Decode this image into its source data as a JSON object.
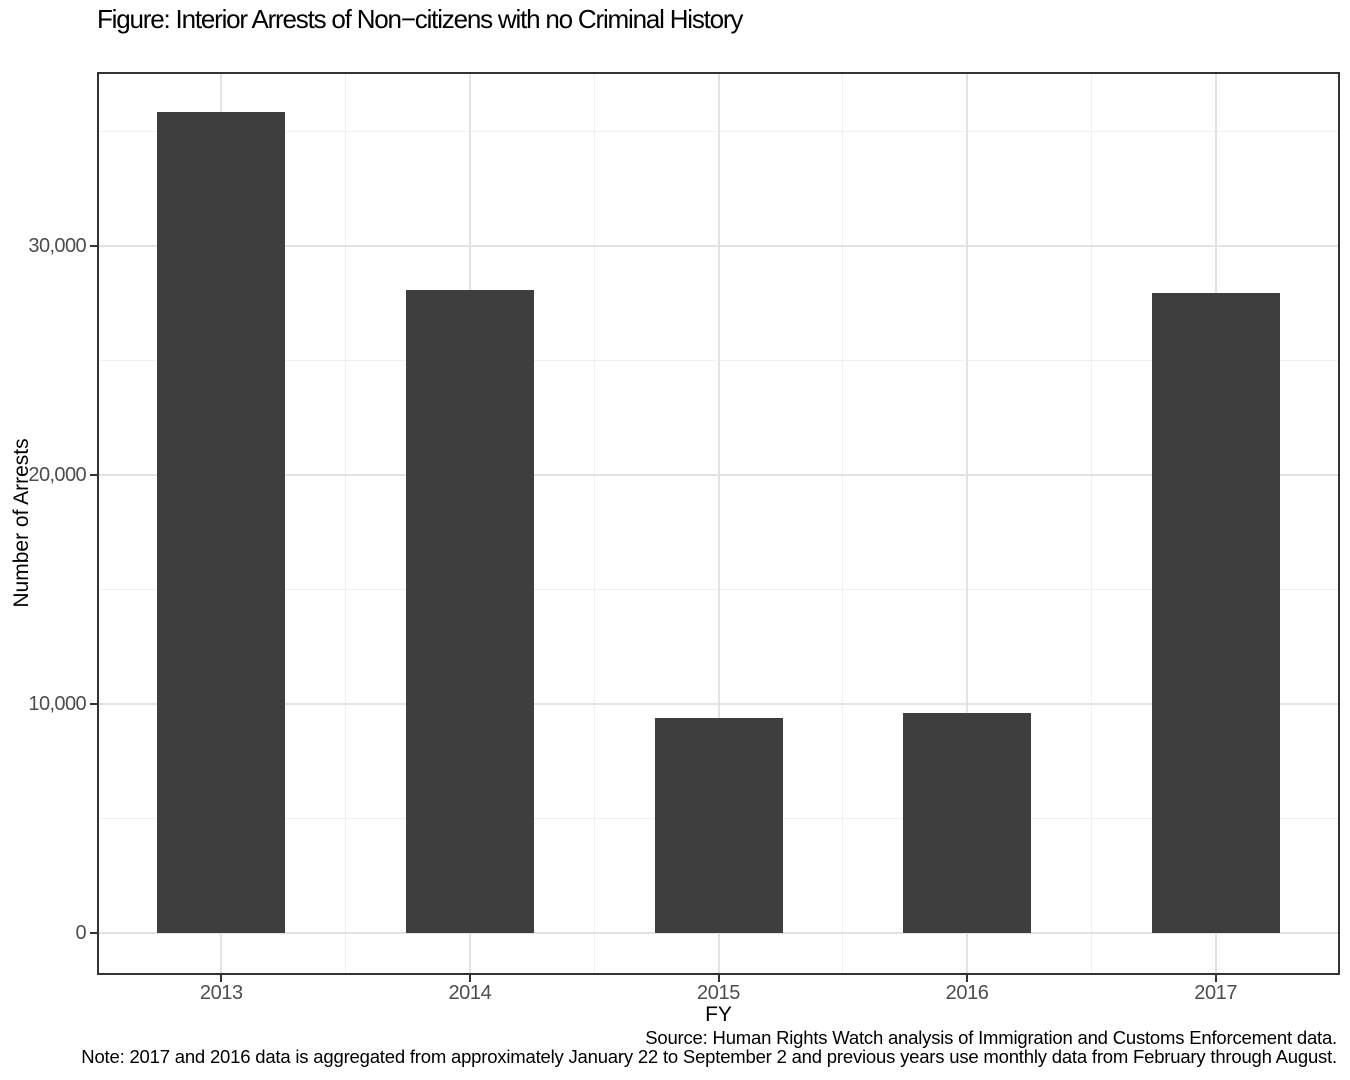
{
  "figure": {
    "title": "Figure: Interior Arrests of Non−citizens with no Criminal History"
  },
  "chart_data": {
    "type": "bar",
    "title": "Figure: Interior Arrests of Non−citizens with no Criminal History",
    "categories": [
      "2013",
      "2014",
      "2015",
      "2016",
      "2017"
    ],
    "values": [
      35850,
      28100,
      9400,
      9600,
      27950
    ],
    "xlabel": "FY",
    "ylabel": "Number of Arrests",
    "ylim": [
      0,
      37600
    ],
    "y_major_ticks": [
      0,
      10000,
      20000,
      30000
    ],
    "y_major_tick_labels": [
      "0",
      "10,000",
      "20,000",
      "30,000"
    ],
    "y_minor_ticks": [
      5000,
      15000,
      25000,
      35000
    ],
    "grid": true,
    "legend_position": "none",
    "bar_color": "#3e3e3e",
    "panel_border_color": "#333333",
    "grid_major_color": "#e3e3e3",
    "grid_minor_color": "#f0f0f0",
    "tick_label_color": "#4d4d4d",
    "caption": [
      "Source: Human Rights Watch analysis of Immigration and Customs Enforcement data.",
      "Note: 2017 and 2016 data is aggregated from approximately January 22 to September 2 and previous years use monthly data from February through August."
    ]
  },
  "caption": {
    "source": "Source: Human Rights Watch analysis of Immigration and Customs Enforcement data.",
    "note": "Note: 2017 and 2016 data is aggregated from approximately January 22 to September 2 and previous years use monthly data from February through August."
  }
}
